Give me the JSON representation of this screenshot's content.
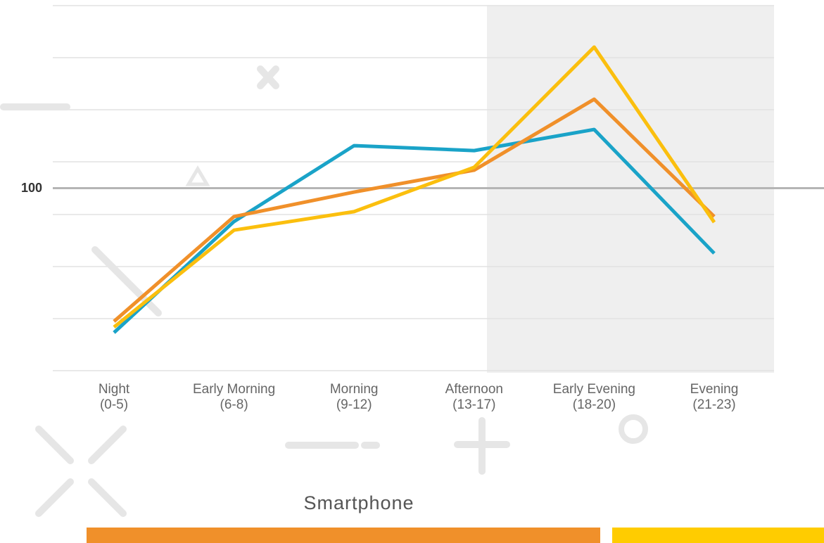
{
  "chart_data": {
    "type": "line",
    "title": "Smartphone",
    "categories": [
      "Night\n(0-5)",
      "Early Morning\n(6-8)",
      "Morning\n(9-12)",
      "Afternoon\n(13-17)",
      "Early Evening\n(18-20)",
      "Evening\n(21-23)"
    ],
    "series": [
      {
        "color": "#1aa3c8",
        "values": [
          44.6,
          87.2,
          116.3,
          114.4,
          122.5,
          75.0
        ]
      },
      {
        "color": "#f0902a",
        "values": [
          48.9,
          89.1,
          98.5,
          106.9,
          134.1,
          89.1
        ]
      },
      {
        "color": "#fbbf0e",
        "values": [
          46.7,
          83.9,
          91.0,
          108.0,
          154.1,
          86.9
        ]
      }
    ],
    "ylim": [
      30,
      170
    ],
    "yticks": [
      100
    ]
  }
}
